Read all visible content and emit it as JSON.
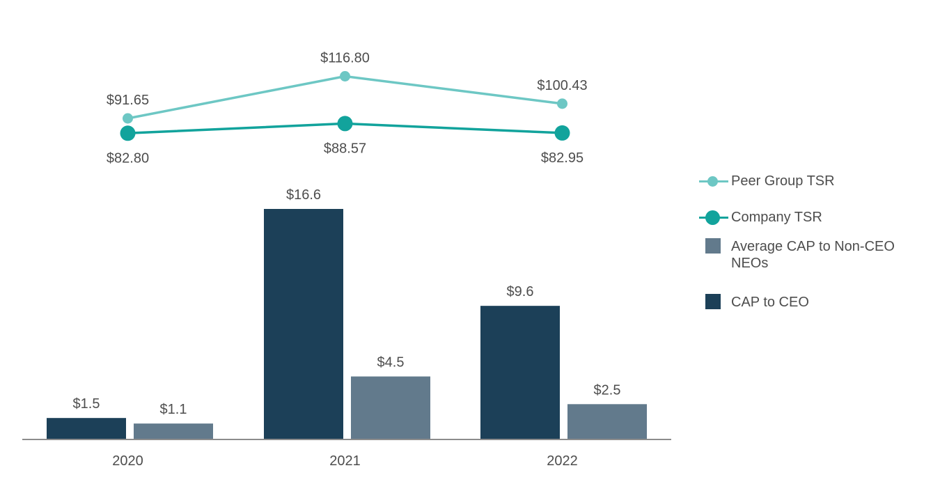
{
  "chart_data": {
    "type": "bar",
    "categories": [
      "2020",
      "2021",
      "2022"
    ],
    "bar_series": [
      {
        "name": "CAP to CEO",
        "values": [
          1.5,
          16.6,
          9.6
        ],
        "labels": [
          "$1.5",
          "$16.6",
          "$9.6"
        ],
        "color": "#1c4058"
      },
      {
        "name": "Average CAP to Non-CEO NEOs",
        "values": [
          1.1,
          4.5,
          2.5
        ],
        "labels": [
          "$1.1",
          "$4.5",
          "$2.5"
        ],
        "color": "#627a8c"
      }
    ],
    "line_series": [
      {
        "name": "Peer Group TSR",
        "values": [
          91.65,
          116.8,
          100.43
        ],
        "labels": [
          "$91.65",
          "$116.80",
          "$100.43"
        ],
        "color": "#6dc7c4"
      },
      {
        "name": "Company TSR",
        "values": [
          82.8,
          88.57,
          82.95
        ],
        "labels": [
          "$82.80",
          "$88.57",
          "$82.95"
        ],
        "color": "#12a39c"
      }
    ],
    "legend": {
      "position": "right",
      "entries": [
        "Peer Group TSR",
        "Company TSR",
        "Average CAP to Non-CEO NEOs",
        "CAP to CEO"
      ]
    },
    "grid": false,
    "axis_color": "#8c8c8c"
  }
}
